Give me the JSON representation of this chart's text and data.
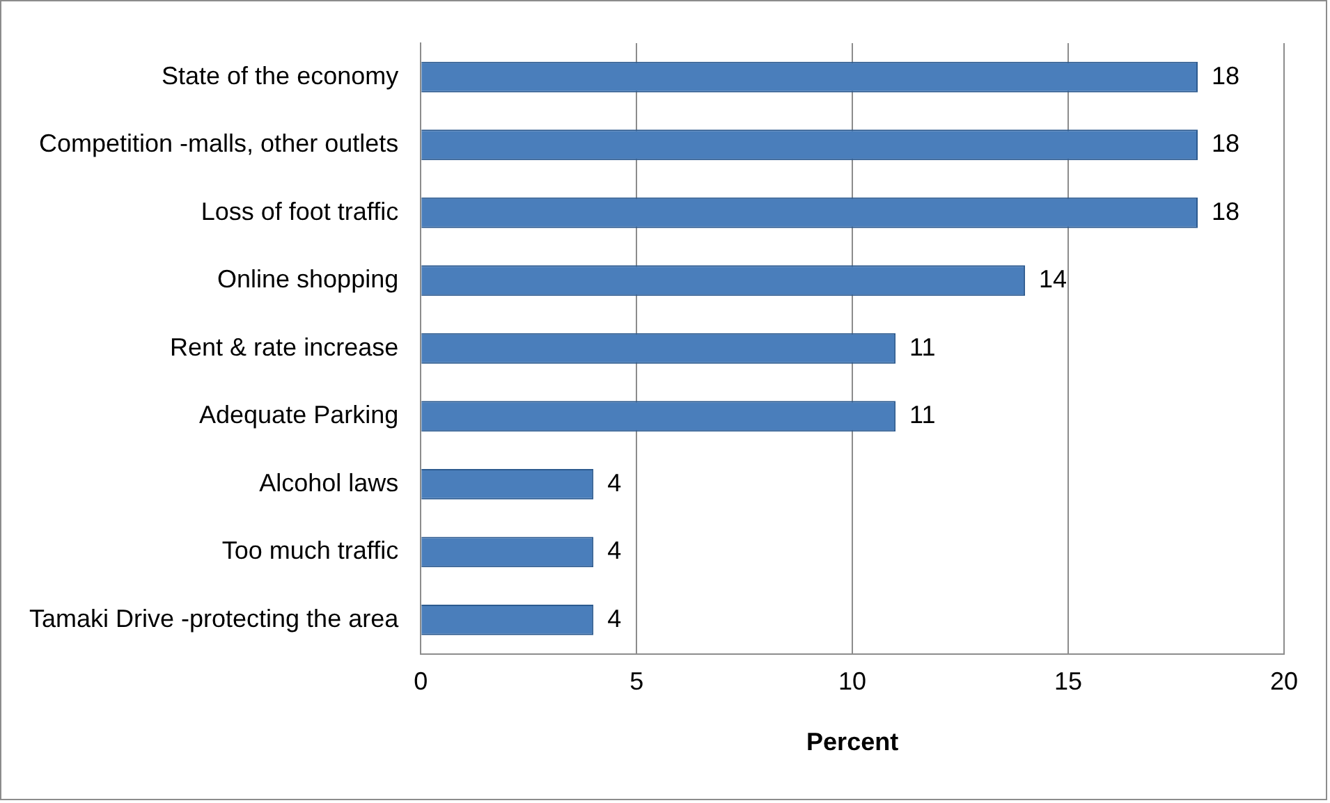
{
  "chart_data": {
    "type": "bar",
    "orientation": "horizontal",
    "xlabel": "Percent",
    "categories": [
      "State of the economy",
      "Competition -malls, other outlets",
      "Loss of foot traffic",
      "Online shopping",
      "Rent & rate increase",
      "Adequate Parking",
      "Alcohol laws",
      "Too much traffic",
      "Tamaki Drive -protecting the area"
    ],
    "values": [
      18,
      18,
      18,
      14,
      11,
      11,
      4,
      4,
      4
    ],
    "color": "#4a7ebb",
    "xlim": [
      0,
      20
    ],
    "xticks": [
      0,
      5,
      10,
      15,
      20
    ],
    "grid": "x",
    "data_labels": true,
    "legend": false
  }
}
